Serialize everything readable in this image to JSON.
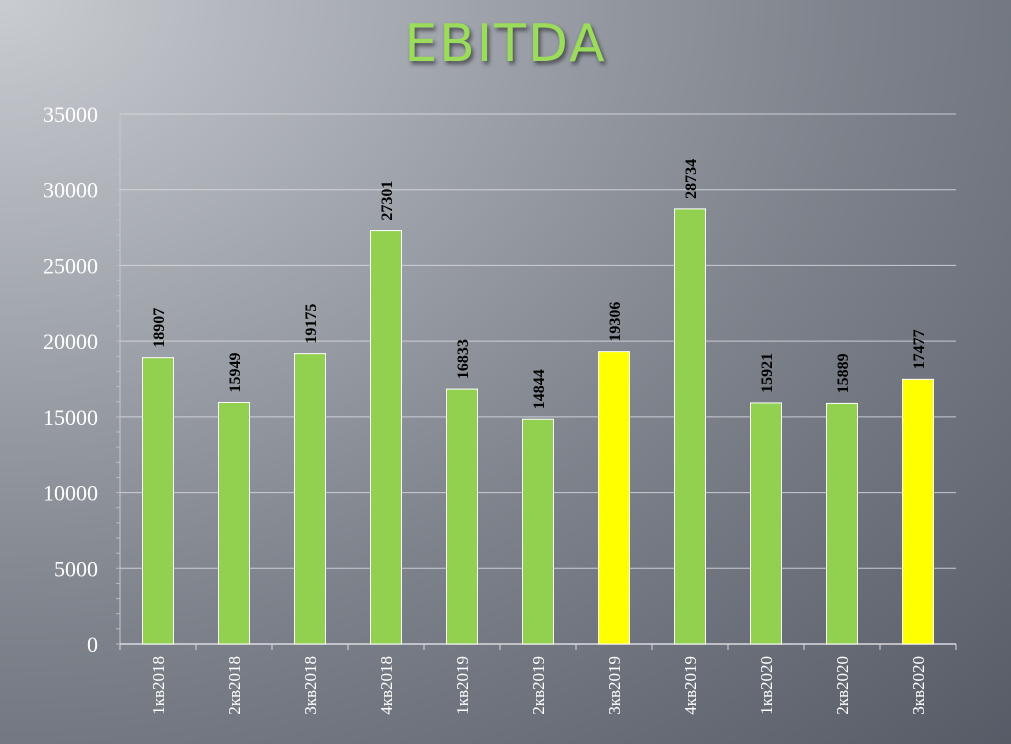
{
  "chart_data": {
    "type": "bar",
    "title": "EBITDA",
    "categories": [
      "1кв2018",
      "2кв2018",
      "3кв2018",
      "4кв2018",
      "1кв2019",
      "2кв2019",
      "3кв2019",
      "4кв2019",
      "1кв2020",
      "2кв2020",
      "3кв2020"
    ],
    "series": [
      {
        "values": [
          18907,
          15949,
          19175,
          27301,
          16833,
          14844,
          19306,
          28734,
          15921,
          15889,
          17477
        ]
      }
    ],
    "bar_colors": [
      "#92d050",
      "#92d050",
      "#92d050",
      "#92d050",
      "#92d050",
      "#92d050",
      "#ffff00",
      "#92d050",
      "#92d050",
      "#92d050",
      "#ffff00"
    ],
    "ylim": [
      0,
      35000
    ],
    "yticks": [
      0,
      5000,
      10000,
      15000,
      20000,
      25000,
      30000,
      35000
    ],
    "grid": true,
    "legend": "none",
    "data_labels": true
  }
}
